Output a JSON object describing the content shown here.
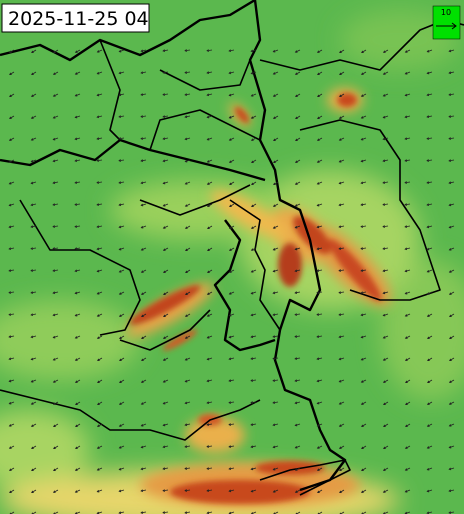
{
  "timestamp": "2025-11-25 04",
  "legend": {
    "label": "10"
  }
}
